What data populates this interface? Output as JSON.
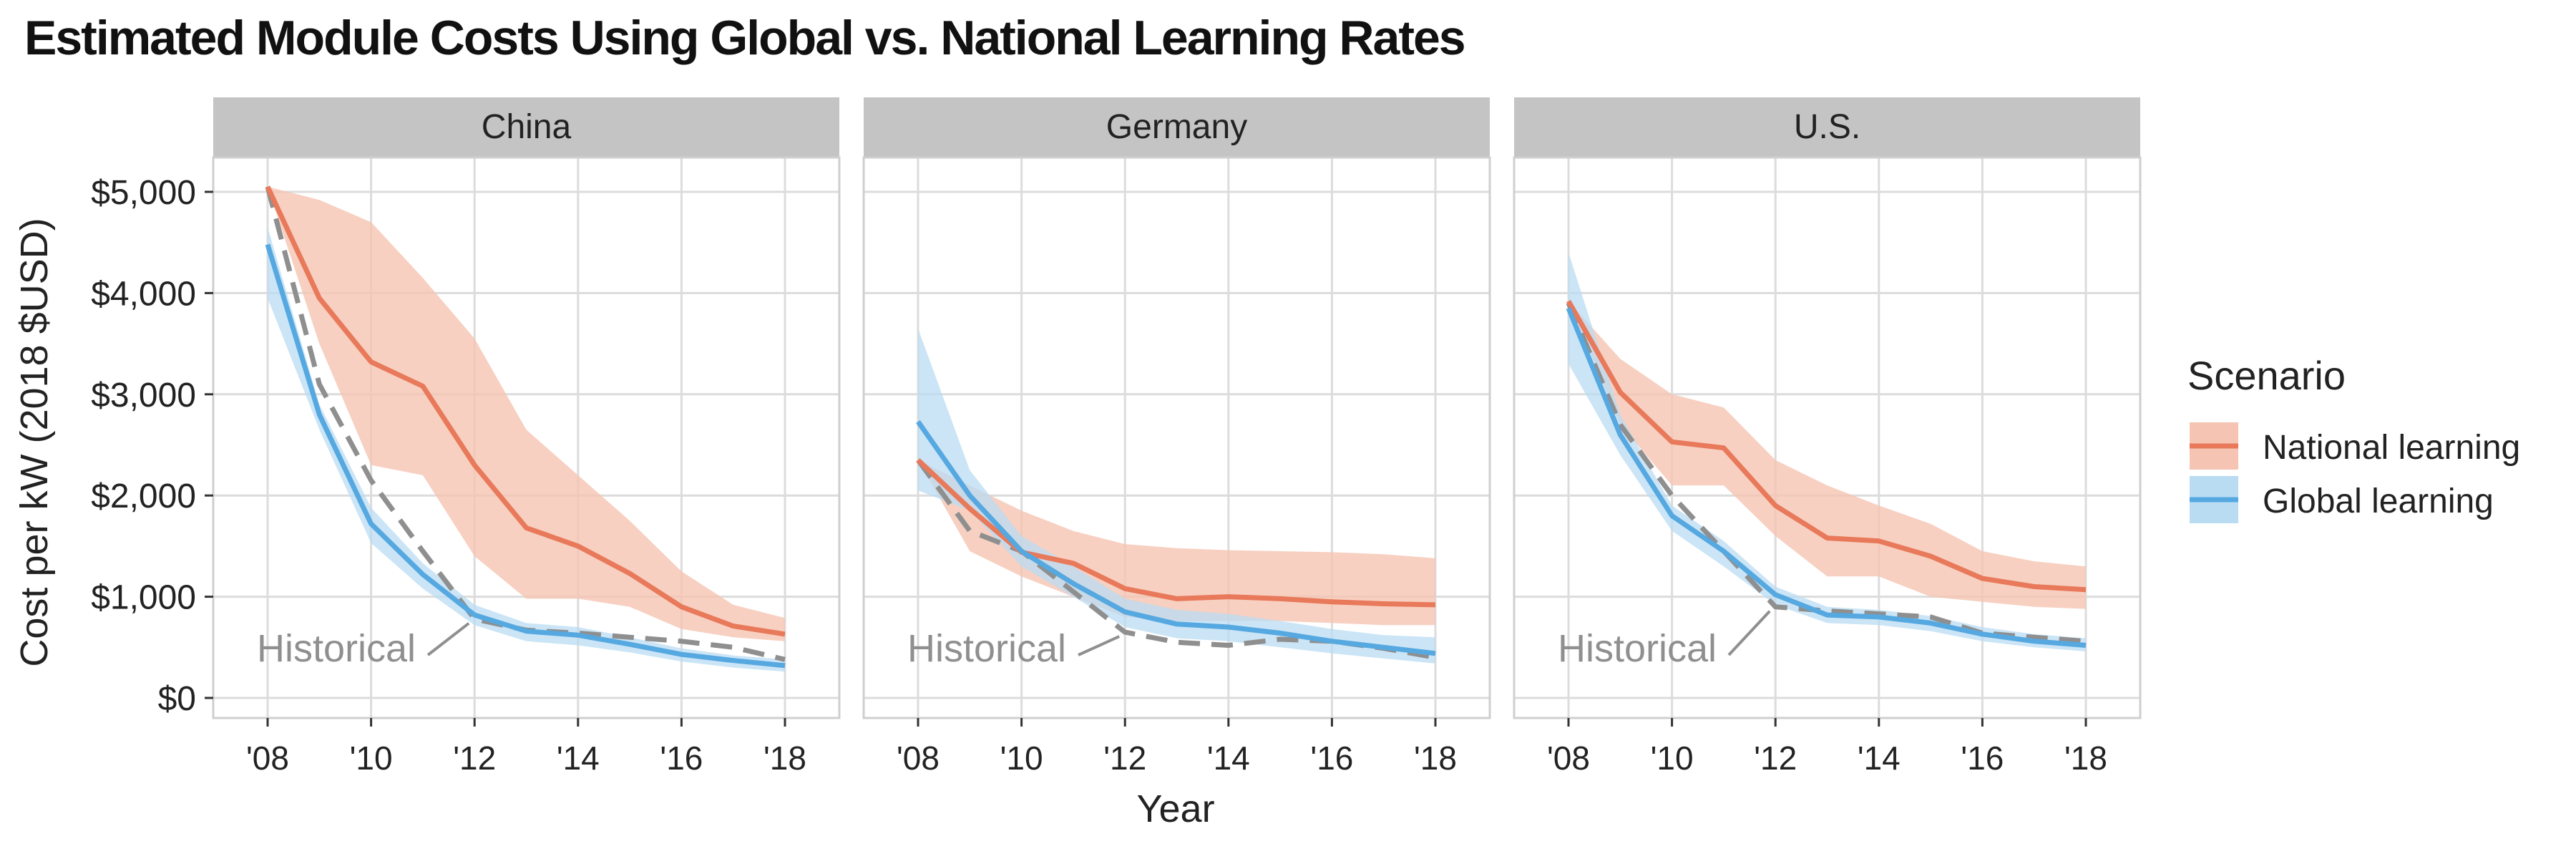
{
  "chart_data": {
    "type": "line",
    "title": "Estimated Module Costs Using Global vs. National Learning Rates",
    "xlabel": "Year",
    "ylabel": "Cost per kW (2018 $USD)",
    "xlim": [
      2008,
      2018
    ],
    "ylim": [
      0,
      5000
    ],
    "x_ticks": [
      2008,
      2010,
      2012,
      2014,
      2016,
      2018
    ],
    "x_tick_labels": [
      "'08",
      "'10",
      "'12",
      "'14",
      "'16",
      "'18"
    ],
    "y_ticks": [
      0,
      1000,
      2000,
      3000,
      4000,
      5000
    ],
    "y_tick_labels": [
      "$0",
      "$1,000",
      "$2,000",
      "$3,000",
      "$4,000",
      "$5,000"
    ],
    "grid": true,
    "legend": {
      "title": "Scenario",
      "position": "right",
      "entries": [
        "National learning",
        "Global learning"
      ]
    },
    "colors": {
      "national_line": "#e8795a",
      "national_band": "#f5c4b2",
      "global_line": "#56a8e0",
      "global_band": "#b9dcf3",
      "historical": "#8f8f8f",
      "strip": "#c4c4c4",
      "grid": "#dcdcdc"
    },
    "annotation": "Historical",
    "x": [
      2008,
      2009,
      2010,
      2011,
      2012,
      2013,
      2014,
      2015,
      2016,
      2017,
      2018
    ],
    "panels": [
      {
        "name": "China",
        "historical": [
          5050,
          3100,
          2150,
          1450,
          780,
          670,
          640,
          600,
          560,
          500,
          380
        ],
        "national": {
          "values": [
            5050,
            3950,
            3320,
            3080,
            2300,
            1680,
            1500,
            1230,
            900,
            710,
            630
          ],
          "lower": [
            5050,
            3500,
            2300,
            2200,
            1400,
            980,
            980,
            900,
            680,
            600,
            560
          ],
          "upper": [
            5050,
            4920,
            4700,
            4150,
            3550,
            2650,
            2200,
            1750,
            1250,
            920,
            790
          ]
        },
        "global": {
          "values": [
            4480,
            2800,
            1720,
            1220,
            820,
            660,
            620,
            530,
            430,
            370,
            320
          ],
          "lower": [
            3950,
            2650,
            1530,
            1080,
            720,
            560,
            520,
            450,
            360,
            300,
            260
          ],
          "upper": [
            4650,
            2900,
            1880,
            1330,
            920,
            740,
            700,
            600,
            490,
            420,
            380
          ]
        }
      },
      {
        "name": "Germany",
        "historical": [
          2350,
          1650,
          1450,
          1050,
          650,
          550,
          520,
          580,
          560,
          490,
          400
        ],
        "national": {
          "values": [
            2350,
            1870,
            1440,
            1330,
            1080,
            980,
            1000,
            980,
            950,
            930,
            920
          ],
          "lower": [
            2350,
            1450,
            1200,
            1000,
            800,
            760,
            760,
            760,
            740,
            720,
            720
          ],
          "upper": [
            2350,
            2100,
            1850,
            1650,
            1520,
            1480,
            1460,
            1450,
            1440,
            1420,
            1380
          ]
        },
        "global": {
          "values": [
            2730,
            2000,
            1450,
            1130,
            850,
            730,
            700,
            640,
            560,
            500,
            440
          ],
          "lower": [
            2050,
            1850,
            1300,
            1000,
            700,
            590,
            560,
            500,
            440,
            390,
            340
          ],
          "upper": [
            3650,
            2250,
            1600,
            1300,
            980,
            870,
            830,
            760,
            680,
            620,
            600
          ]
        }
      },
      {
        "name": "U.S.",
        "historical": [
          3900,
          2700,
          2000,
          1450,
          900,
          860,
          830,
          800,
          640,
          600,
          560
        ],
        "national": {
          "values": [
            3920,
            3020,
            2530,
            2470,
            1900,
            1580,
            1550,
            1400,
            1180,
            1100,
            1070
          ],
          "lower": [
            3920,
            2700,
            2100,
            2100,
            1600,
            1200,
            1200,
            1000,
            950,
            900,
            880
          ],
          "upper": [
            3920,
            3350,
            3000,
            2870,
            2350,
            2100,
            1900,
            1720,
            1450,
            1350,
            1300
          ]
        },
        "global": {
          "values": [
            3850,
            2600,
            1800,
            1450,
            1020,
            820,
            800,
            740,
            630,
            560,
            520
          ],
          "lower": [
            3300,
            2400,
            1650,
            1300,
            920,
            740,
            720,
            660,
            560,
            500,
            460
          ],
          "upper": [
            4400,
            2800,
            1900,
            1550,
            1100,
            900,
            870,
            810,
            700,
            630,
            590
          ]
        }
      }
    ]
  }
}
